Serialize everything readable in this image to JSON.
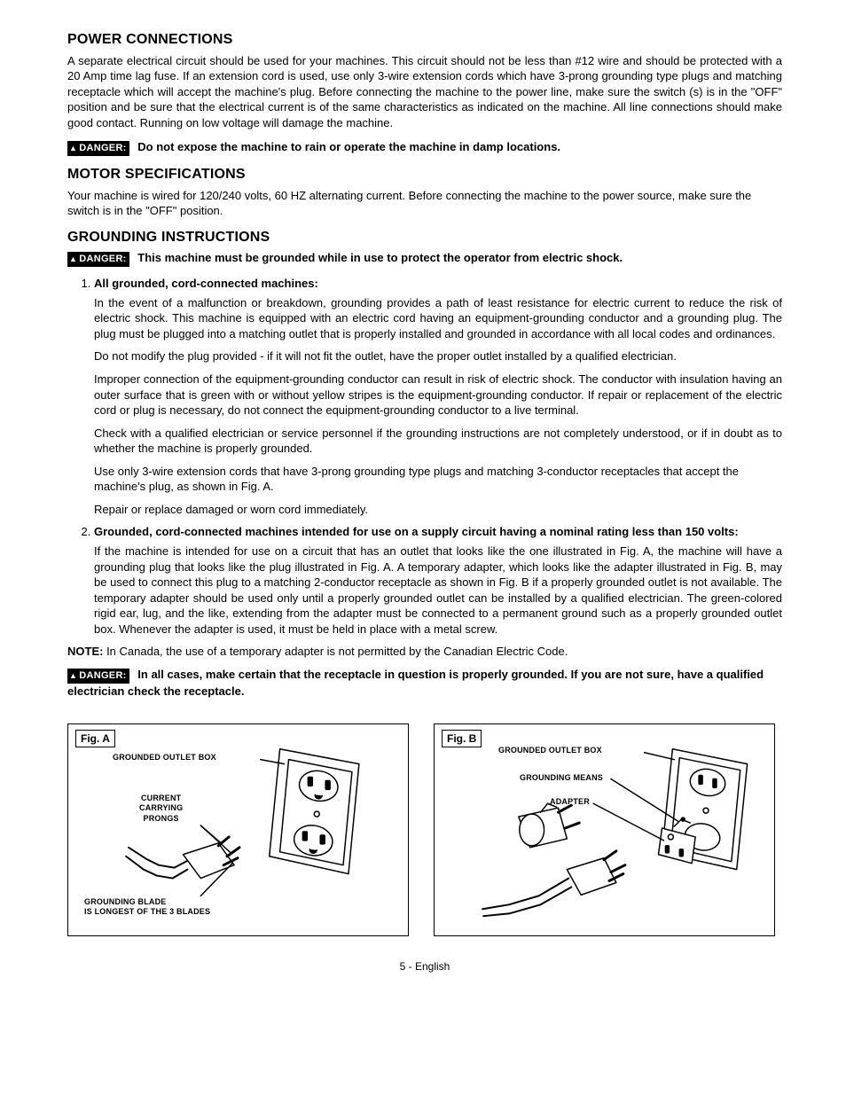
{
  "sections": {
    "power": {
      "heading": "POWER CONNECTIONS",
      "body": "A separate electrical circuit should be used for your machines. This circuit should not be less than #12 wire and should be protected with a 20 Amp time lag fuse. If an extension cord is used, use only 3-wire extension cords which have 3-prong grounding type plugs and matching receptacle which will accept the machine's plug. Before connecting the machine to the power line, make sure the switch (s) is in the \"OFF\" position and be sure that the electrical current is of the same characteristics as indicated on the machine. All line connections should make good contact. Running on low voltage will damage the machine.",
      "danger": "Do not expose the machine to rain or operate the machine in damp locations."
    },
    "motor": {
      "heading": "MOTOR SPECIFICATIONS",
      "body": "Your machine is wired for 120/240 volts, 60 HZ alternating current. Before connecting the machine to the power source, make sure the switch is in the \"OFF\" position."
    },
    "grounding": {
      "heading": "GROUNDING INSTRUCTIONS",
      "danger1": "This machine must be grounded while in use to protect the operator from electric shock.",
      "item1_title": "All grounded, cord-connected machines:",
      "item1_p1": "In the event of a malfunction or breakdown, grounding provides a path of least resistance for electric current to reduce the risk of electric shock. This machine is equipped with an electric cord having an equipment-grounding conductor and a grounding plug. The plug must be plugged into a matching outlet that is properly installed and grounded in accordance with all local codes and ordinances.",
      "item1_p2": "Do not modify the plug provided - if it will not fit the outlet, have the proper outlet installed by a qualified electrician.",
      "item1_p3": "Improper connection of the equipment-grounding conductor can result in risk of electric shock. The conductor with insulation having an outer surface that is green with or without yellow stripes is the equipment-grounding conductor. If repair or replacement of the electric cord or plug is necessary, do not connect the equipment-grounding conductor to a live terminal.",
      "item1_p4": "Check with a qualified electrician or service personnel if the grounding instructions are not completely understood, or if in doubt as to whether the machine is properly grounded.",
      "item1_p5": "Use only 3-wire extension cords that have 3-prong grounding type plugs and matching 3-conductor receptacles that accept the machine's plug, as shown in Fig. A.",
      "item1_p6": "Repair or replace damaged or worn cord immediately.",
      "item2_title": "Grounded, cord-connected machines intended for use on a supply circuit having a nominal rating less than 150 volts:",
      "item2_p1": "If the machine is intended for use on a circuit that has an outlet that looks like the one illustrated in Fig. A, the machine will have a grounding plug that looks like the plug illustrated in Fig. A. A temporary adapter, which looks like the adapter illustrated in Fig. B, may be used to connect this plug to a matching 2-conductor receptacle as shown in Fig. B if a properly grounded outlet is not available. The temporary adapter should be used only until a properly grounded outlet can be installed by a qualified electrician. The green-colored rigid ear, lug, and the like, extending from the adapter must be connected to a permanent ground such as a properly grounded outlet box. Whenever the adapter is used, it must be held in place with a metal screw.",
      "note_label": "NOTE:",
      "note_text": " In Canada, the use of a temporary adapter is not permitted by the Canadian Electric Code.",
      "danger2": "In all cases, make certain that the receptacle in question is properly grounded. If you are not sure, have a qualified electrician check the receptacle."
    }
  },
  "danger_label": "DANGER:",
  "figures": {
    "a": {
      "label": "Fig. A",
      "captions": {
        "outlet": "GROUNDED OUTLET BOX",
        "prongs": "CURRENT\nCARRYING\nPRONGS",
        "blade": "GROUNDING BLADE\nIS LONGEST OF THE 3 BLADES"
      }
    },
    "b": {
      "label": "Fig. B",
      "captions": {
        "outlet": "GROUNDED OUTLET BOX",
        "means": "GROUNDING MEANS",
        "adapter": "ADAPTER"
      }
    }
  },
  "footer": "5 - English"
}
